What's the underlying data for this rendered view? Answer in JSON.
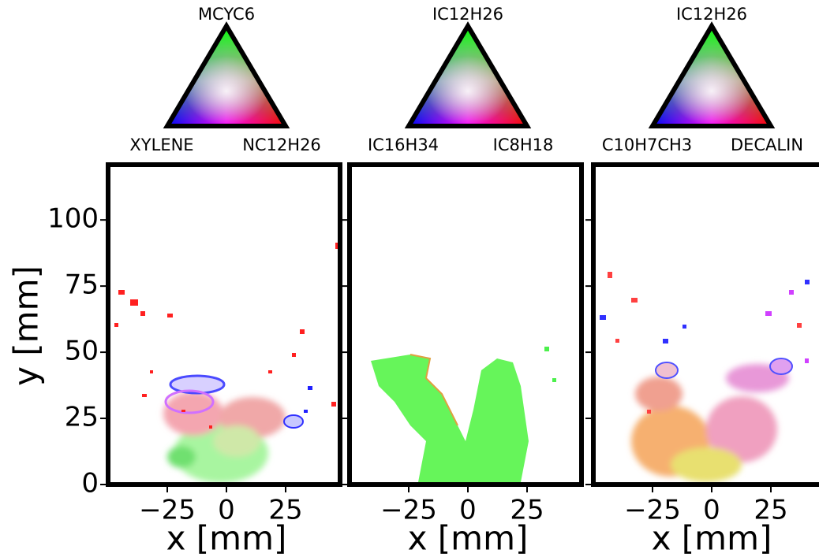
{
  "chart_data": [
    {
      "type": "image",
      "ternary": {
        "top": "MCYC6",
        "left": "XYLENE",
        "right": "NC12H26"
      },
      "xlabel": "x [mm]",
      "ylabel": "y [mm]",
      "xlim": [
        -50,
        48
      ],
      "xticks": [
        {
          "value": -25,
          "label": "−25"
        },
        0,
        25
      ],
      "ylim": [
        0,
        120
      ],
      "yticks": [
        0,
        25,
        50,
        75,
        100
      ]
    },
    {
      "type": "image",
      "ternary": {
        "top": "IC12H26",
        "left": "IC16H34",
        "right": "IC8H18"
      },
      "xlabel": "x [mm]",
      "xlim": [
        -50,
        48
      ],
      "xticks": [
        {
          "value": -25,
          "label": "−25"
        },
        0,
        25
      ]
    },
    {
      "type": "image",
      "ternary": {
        "top": "IC12H26",
        "left": "C10H7CH3",
        "right": "DECALIN"
      },
      "xlabel": "x [mm]",
      "xlim": [
        -50,
        48
      ],
      "xticks": [
        {
          "value": -25,
          "label": "−25"
        },
        0,
        25
      ]
    }
  ]
}
